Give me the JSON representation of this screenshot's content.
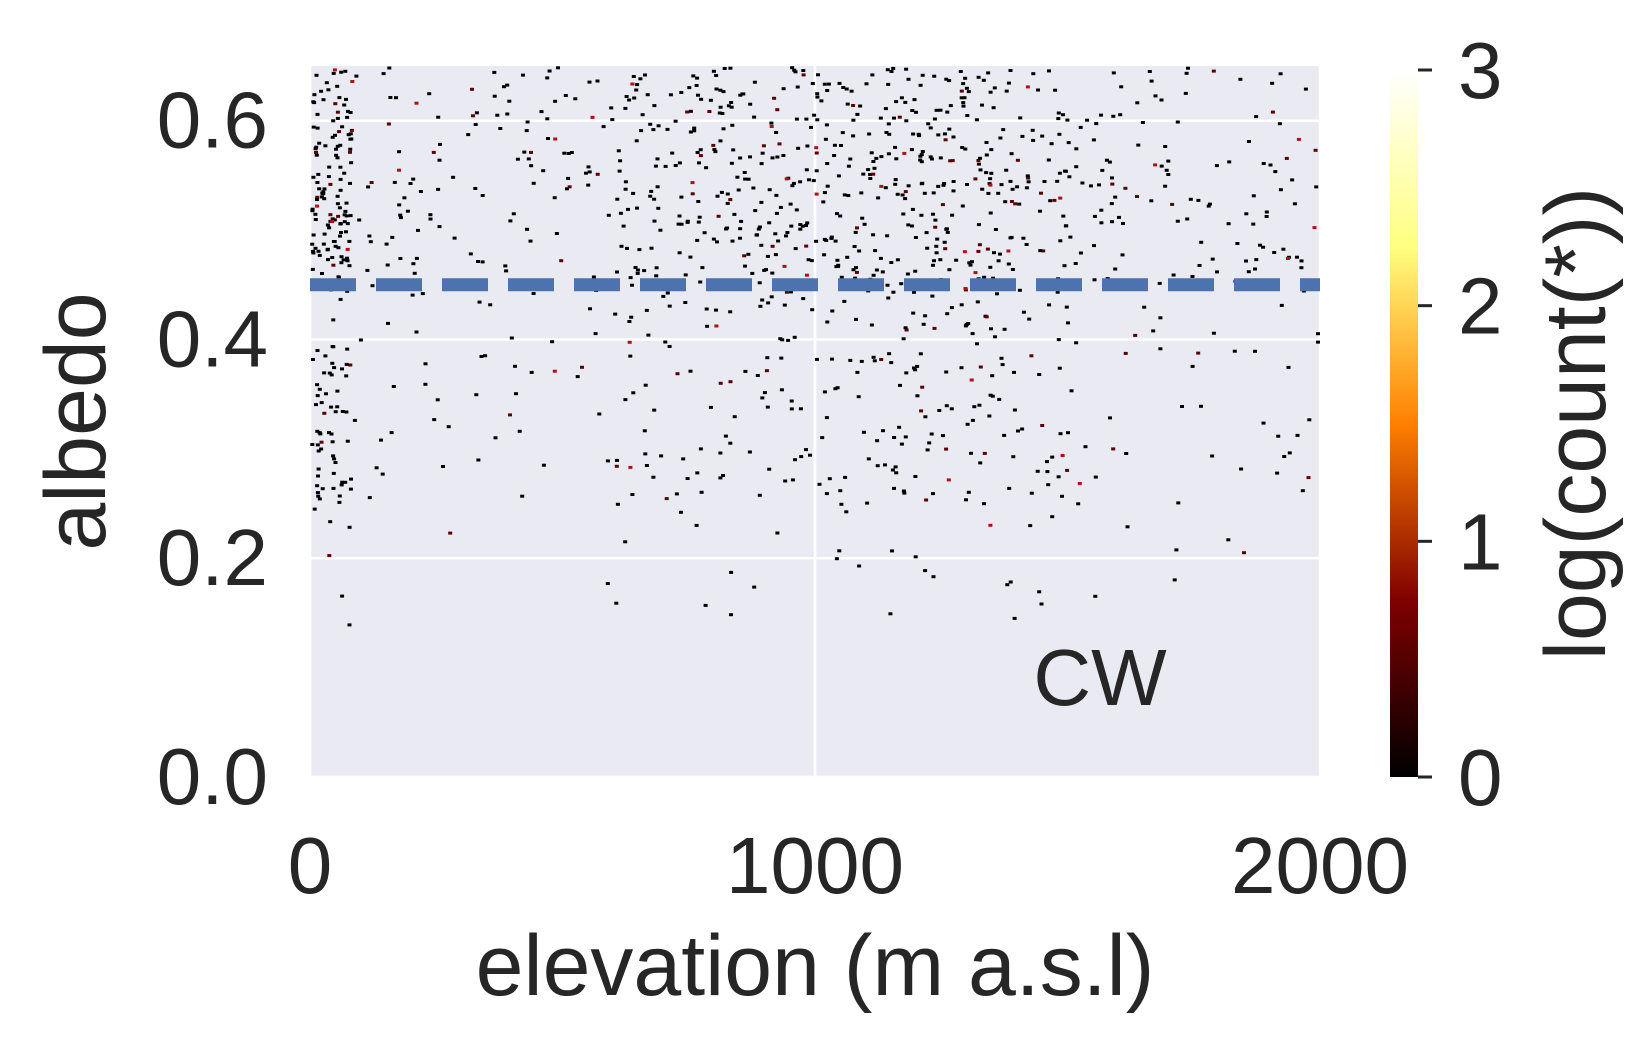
{
  "chart_data": {
    "type": "heatmap",
    "title": "",
    "xlabel": "elevation (m a.s.l)",
    "ylabel": "albedo",
    "xlim": [
      0,
      2000
    ],
    "ylim": [
      0,
      0.65
    ],
    "x_ticks": [
      "0",
      "1000",
      "2000"
    ],
    "x_tick_values": [
      0,
      1000,
      2000
    ],
    "y_ticks": [
      "0.0",
      "0.2",
      "0.4",
      "0.6"
    ],
    "y_tick_values": [
      0.0,
      0.2,
      0.4,
      0.6
    ],
    "grid": true,
    "background_color": "#eaeaf2",
    "annotation": "CW",
    "reference_line": {
      "y": 0.45,
      "style": "dashed",
      "color": "#4c72b0"
    },
    "colorbar": {
      "label": "log(count(*))",
      "range": [
        0,
        3
      ],
      "ticks": [
        "0",
        "1",
        "2",
        "3"
      ],
      "tick_values": [
        0,
        1,
        2,
        3
      ],
      "colormap": "afmhot",
      "colors": [
        "#000000",
        "#800000",
        "#ff8000",
        "#ffff80",
        "#ffffff"
      ]
    },
    "density_description_bands": [
      {
        "albedo_range": [
          0.45,
          0.65
        ],
        "relative_density": "high"
      },
      {
        "albedo_range": [
          0.25,
          0.45
        ],
        "relative_density": "medium"
      },
      {
        "albedo_range": [
          0.14,
          0.25
        ],
        "relative_density": "low"
      }
    ]
  }
}
